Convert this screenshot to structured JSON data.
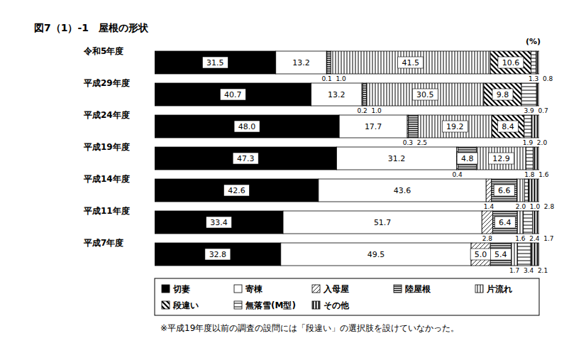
{
  "chart_data": {
    "type": "bar",
    "orientation": "horizontal",
    "stacked": true,
    "data_labels": true,
    "tick_labels": "y",
    "grid": false,
    "title": "図7（1）-1　屋根の形状",
    "x_label": "(%)",
    "note": "※平成19年度以前の調査の設問には「段違い」の選択肢を設けていなかった。",
    "xlim": [
      0,
      100
    ],
    "categories": [
      "令和5年度",
      "平成29年度",
      "平成24年度",
      "平成19年度",
      "平成14年度",
      "平成11年度",
      "平成7年度"
    ],
    "series": [
      {
        "name": "切妻",
        "color": "#000000",
        "values": [
          31.5,
          40.7,
          48.0,
          47.3,
          42.6,
          33.4,
          32.8
        ],
        "value_labels": [
          "31.5",
          "40.7",
          "48.0",
          "47.3",
          "42.6",
          "33.4",
          "32.8"
        ]
      },
      {
        "name": "寄棟",
        "color": "#ffffff",
        "values": [
          13.2,
          13.2,
          17.7,
          31.2,
          43.6,
          51.7,
          49.5
        ],
        "value_labels": [
          "13.2",
          "13.2",
          "17.7",
          "31.2",
          "43.6",
          "51.7",
          "49.5"
        ]
      },
      {
        "name": "入母屋",
        "color": "#000000",
        "values": [
          0.1,
          0.2,
          0.3,
          0.4,
          1.4,
          2.8,
          5.0
        ],
        "value_labels": [
          "0.1",
          "0.2",
          "0.3",
          "0.4",
          "1.4",
          "2.8",
          "5.0"
        ]
      },
      {
        "name": "陸屋根",
        "color": "#000000",
        "values": [
          1.0,
          1.0,
          2.5,
          4.8,
          6.6,
          6.4,
          5.4
        ],
        "value_labels": [
          "1.0",
          "1.0",
          "2.5",
          "4.8",
          "6.6",
          "6.4",
          "5.4"
        ]
      },
      {
        "name": "片流れ",
        "color": "#000000",
        "values": [
          41.5,
          30.5,
          19.2,
          12.9,
          2.0,
          1.6,
          1.7
        ],
        "value_labels": [
          "41.5",
          "30.5",
          "19.2",
          "12.9",
          "2.0",
          "1.6",
          "1.7"
        ]
      },
      {
        "name": "段違い",
        "color": "#000000",
        "values": [
          10.6,
          9.8,
          8.4,
          null,
          null,
          null,
          null
        ],
        "value_labels": [
          "10.6",
          "9.8",
          "8.4",
          null,
          null,
          null,
          null
        ]
      },
      {
        "name": "無落雪(M型)",
        "color": "#000000",
        "values": [
          1.3,
          3.9,
          1.9,
          1.8,
          1.0,
          2.4,
          3.4
        ],
        "value_labels": [
          "1.3",
          "3.9",
          "1.9",
          "1.8",
          "1.0",
          "2.4",
          "3.4"
        ]
      },
      {
        "name": "その他",
        "color": "#000000",
        "values": [
          0.8,
          0.7,
          2.0,
          1.6,
          2.8,
          1.7,
          2.1
        ],
        "value_labels": [
          "0.8",
          "0.7",
          "2.0",
          "1.6",
          "2.8",
          "1.7",
          "2.1"
        ]
      }
    ]
  }
}
